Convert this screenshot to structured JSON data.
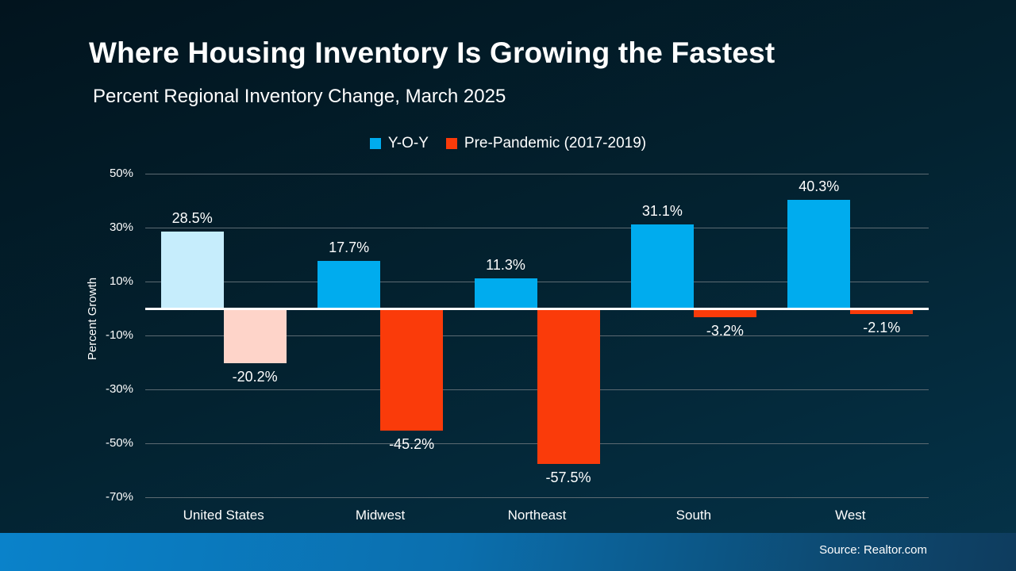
{
  "slide": {
    "title": "Where Housing Inventory Is Growing the Fastest",
    "subtitle": "Percent Regional Inventory Change, March 2025",
    "source": "Source: Realtor.com"
  },
  "legend": [
    {
      "label": "Y-O-Y",
      "color": "#00ACEE"
    },
    {
      "label": "Pre-Pandemic (2017-2019)",
      "color": "#FA3B0A"
    }
  ],
  "chart_data": {
    "type": "bar",
    "title": "Where Housing Inventory Is Growing the Fastest",
    "subtitle": "Percent Regional Inventory Change, March 2025",
    "categories": [
      "United States",
      "Midwest",
      "Northeast",
      "South",
      "West"
    ],
    "series": [
      {
        "name": "Y-O-Y",
        "values": [
          28.5,
          17.7,
          11.3,
          31.1,
          40.3
        ],
        "color": "#00ACEE",
        "bar_colors": [
          "#C6EDFC",
          "#00ACEE",
          "#00ACEE",
          "#00ACEE",
          "#00ACEE"
        ]
      },
      {
        "name": "Pre-Pandemic (2017-2019)",
        "values": [
          -20.2,
          -45.2,
          -57.5,
          -3.2,
          -2.1
        ],
        "color": "#FA3B0A",
        "bar_colors": [
          "#FED4C9",
          "#FA3B0A",
          "#FA3B0A",
          "#FA3B0A",
          "#FA3B0A"
        ]
      }
    ],
    "highlight_category": "United States",
    "ylabel": "Percent Growth",
    "yticks": [
      50,
      30,
      10,
      -10,
      -30,
      -50,
      -70
    ],
    "ylim": [
      -70,
      50
    ],
    "value_suffix": "%",
    "grid": true,
    "legend_position": "top",
    "zero_line": true
  }
}
